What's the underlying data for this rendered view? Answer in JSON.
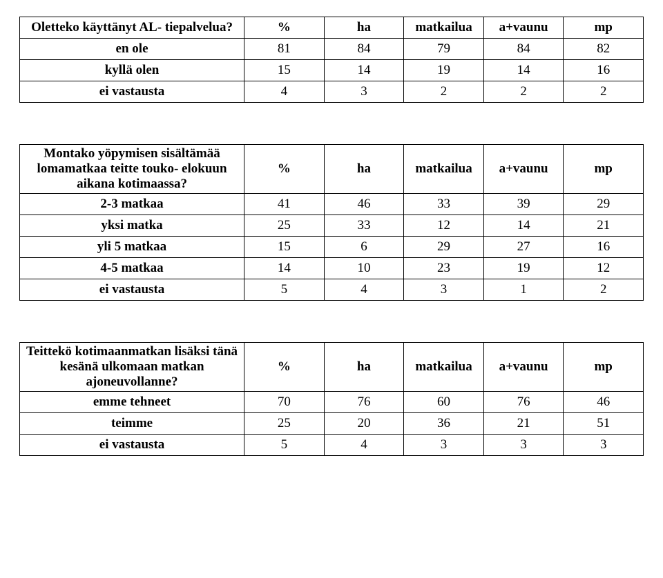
{
  "tables": [
    {
      "question": "Oletteko käyttänyt AL-\ntiepalvelua?",
      "columns": [
        "%",
        "ha",
        "matkailua",
        "a+vaunu",
        "mp"
      ],
      "rows": [
        {
          "label": "en ole",
          "values": [
            81,
            84,
            79,
            84,
            82
          ]
        },
        {
          "label": "kyllä olen",
          "values": [
            15,
            14,
            19,
            14,
            16
          ]
        },
        {
          "label": "ei vastausta",
          "values": [
            4,
            3,
            2,
            2,
            2
          ]
        }
      ]
    },
    {
      "question": "Montako yöpymisen sisältämää\nlomamatkaa teitte touko- elokuun\naikana kotimaassa?",
      "columns": [
        "%",
        "ha",
        "matkailua",
        "a+vaunu",
        "mp"
      ],
      "rows": [
        {
          "label": "2-3 matkaa",
          "values": [
            41,
            46,
            33,
            39,
            29
          ]
        },
        {
          "label": "yksi matka",
          "values": [
            25,
            33,
            12,
            14,
            21
          ]
        },
        {
          "label": "yli 5 matkaa",
          "values": [
            15,
            6,
            29,
            27,
            16
          ]
        },
        {
          "label": "4-5 matkaa",
          "values": [
            14,
            10,
            23,
            19,
            12
          ]
        },
        {
          "label": "ei vastausta",
          "values": [
            5,
            4,
            3,
            1,
            2
          ]
        }
      ]
    },
    {
      "question": "Teittekö kotimaanmatkan lisäksi\ntänä kesänä ulkomaan matkan\najoneuvollanne?",
      "columns": [
        "%",
        "ha",
        "matkailua",
        "a+vaunu",
        "mp"
      ],
      "rows": [
        {
          "label": "emme tehneet",
          "values": [
            70,
            76,
            60,
            76,
            46
          ]
        },
        {
          "label": "teimme",
          "values": [
            25,
            20,
            36,
            21,
            51
          ]
        },
        {
          "label": "ei vastausta",
          "values": [
            5,
            4,
            3,
            3,
            3
          ]
        }
      ]
    }
  ]
}
